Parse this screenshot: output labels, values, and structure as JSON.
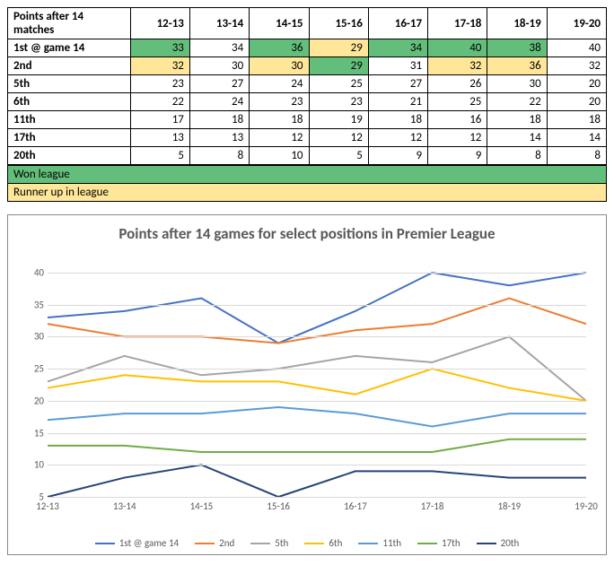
{
  "table": {
    "header_label": "Points after 14 matches",
    "seasons": [
      "12-13",
      "13-14",
      "14-15",
      "15-16",
      "16-17",
      "17-18",
      "18-19",
      "19-20"
    ],
    "rows": [
      {
        "label": "1st @ game 14",
        "values": [
          33,
          34,
          36,
          29,
          34,
          40,
          38,
          40
        ]
      },
      {
        "label": "2nd",
        "values": [
          32,
          30,
          30,
          29,
          31,
          32,
          36,
          32
        ]
      },
      {
        "label": "5th",
        "values": [
          23,
          27,
          24,
          25,
          27,
          26,
          30,
          20
        ]
      },
      {
        "label": "6th",
        "values": [
          22,
          24,
          23,
          23,
          21,
          25,
          22,
          20
        ]
      },
      {
        "label": "11th",
        "values": [
          17,
          18,
          18,
          19,
          18,
          16,
          18,
          18
        ]
      },
      {
        "label": "17th",
        "values": [
          13,
          13,
          12,
          12,
          12,
          12,
          14,
          14
        ]
      },
      {
        "label": "20th",
        "values": [
          5,
          8,
          10,
          5,
          9,
          9,
          8,
          8
        ]
      }
    ],
    "highlights": {
      "won": [
        [
          0,
          0
        ],
        [
          0,
          2
        ],
        [
          0,
          4
        ],
        [
          0,
          5
        ],
        [
          0,
          6
        ],
        [
          1,
          3
        ]
      ],
      "runner": [
        [
          1,
          0
        ],
        [
          1,
          2
        ],
        [
          0,
          3
        ],
        [
          1,
          5
        ],
        [
          1,
          6
        ]
      ]
    },
    "legend": {
      "won": "Won league",
      "runner": "Runner up in league"
    },
    "colors": {
      "won": "#63be7b",
      "runner": "#ffe699"
    }
  },
  "chart": {
    "title": "Points after 14 games for select positions in Premier League",
    "type": "line",
    "x_categories": [
      "12-13",
      "13-14",
      "14-15",
      "15-16",
      "16-17",
      "17-18",
      "18-19",
      "19-20"
    ],
    "ylim": [
      5,
      40
    ],
    "ytick_step": 5,
    "yticks": [
      5,
      10,
      15,
      20,
      25,
      30,
      35,
      40
    ],
    "grid_color": "#d9d9d9",
    "background_color": "#ffffff",
    "title_fontsize": 17,
    "label_fontsize": 11,
    "line_width": 2,
    "series": [
      {
        "name": "1st @ game 14",
        "color": "#4472c4",
        "values": [
          33,
          34,
          36,
          29,
          34,
          40,
          38,
          40
        ]
      },
      {
        "name": "2nd",
        "color": "#ed7d31",
        "values": [
          32,
          30,
          30,
          29,
          31,
          32,
          36,
          32
        ]
      },
      {
        "name": "5th",
        "color": "#a5a5a5",
        "values": [
          23,
          27,
          24,
          25,
          27,
          26,
          30,
          20
        ]
      },
      {
        "name": "6th",
        "color": "#ffc000",
        "values": [
          22,
          24,
          23,
          23,
          21,
          25,
          22,
          20
        ]
      },
      {
        "name": "11th",
        "color": "#5b9bd5",
        "values": [
          17,
          18,
          18,
          19,
          18,
          16,
          18,
          18
        ]
      },
      {
        "name": "17th",
        "color": "#70ad47",
        "values": [
          13,
          13,
          12,
          12,
          12,
          12,
          14,
          14
        ]
      },
      {
        "name": "20th",
        "color": "#264478",
        "values": [
          5,
          8,
          10,
          5,
          9,
          9,
          8,
          8
        ]
      }
    ]
  }
}
